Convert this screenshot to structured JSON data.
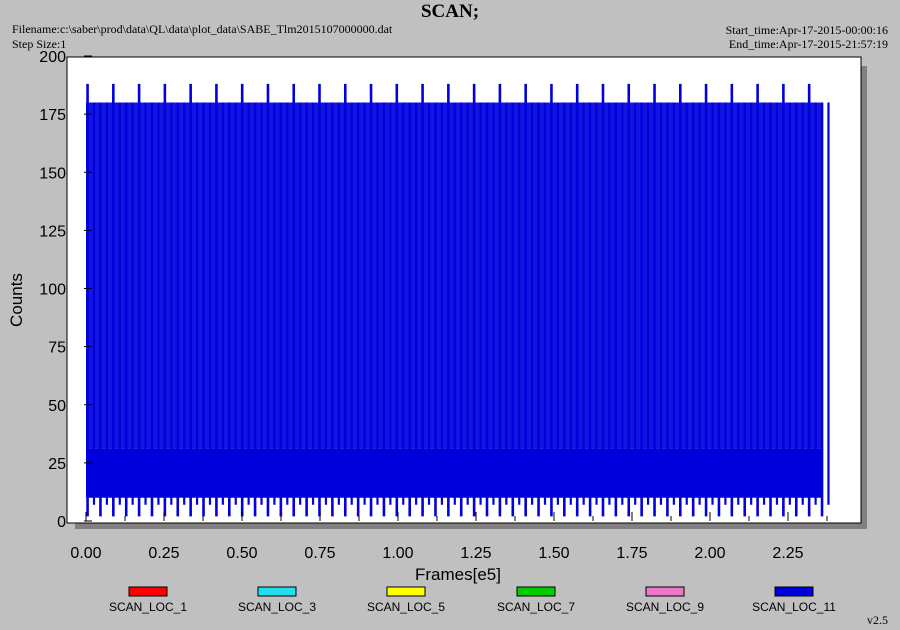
{
  "header": {
    "title": "SCAN;",
    "filename": "Filename:c:\\saber\\prod\\data\\QL\\data\\plot_data\\SABE_Tlm2015107000000.dat",
    "step_size": "Step Size:1",
    "start_time": "Start_time:Apr-17-2015-00:00:16",
    "end_time": "End_time:Apr-17-2015-21:57:19"
  },
  "version": "v2.5",
  "colors": {
    "background": "#c0c0c0",
    "plot_area": "#ffffff",
    "shadow": "#808080",
    "series_main": "#0000dd"
  },
  "chart_data": {
    "type": "line",
    "title": "SCAN;",
    "xlabel": "Frames[e5]",
    "ylabel": "Counts",
    "xlim": [
      0,
      2.45
    ],
    "ylim": [
      0,
      200
    ],
    "x_ticks": [
      "0.00",
      "0.25",
      "0.50",
      "0.75",
      "1.00",
      "1.25",
      "1.50",
      "1.75",
      "2.00",
      "2.25"
    ],
    "y_ticks": [
      "0",
      "25",
      "50",
      "75",
      "100",
      "125",
      "150",
      "175",
      "200"
    ],
    "series": [
      {
        "name": "SCAN_LOC_1",
        "color": "#ff0000",
        "values": []
      },
      {
        "name": "SCAN_LOC_3",
        "color": "#22ddee",
        "values": []
      },
      {
        "name": "SCAN_LOC_5",
        "color": "#ffff00",
        "values": []
      },
      {
        "name": "SCAN_LOC_7",
        "color": "#00cc00",
        "values": []
      },
      {
        "name": "SCAN_LOC_9",
        "color": "#ee77cc",
        "values": []
      },
      {
        "name": "SCAN_LOC_11",
        "color": "#0000dd",
        "x_range": [
          0.0,
          2.36
        ],
        "spike_period": 0.0413,
        "spike_max_values": [
          188,
          180
        ],
        "band_range": [
          10,
          31
        ],
        "dip_min": 2
      }
    ],
    "legend_position": "bottom",
    "grid": false
  }
}
